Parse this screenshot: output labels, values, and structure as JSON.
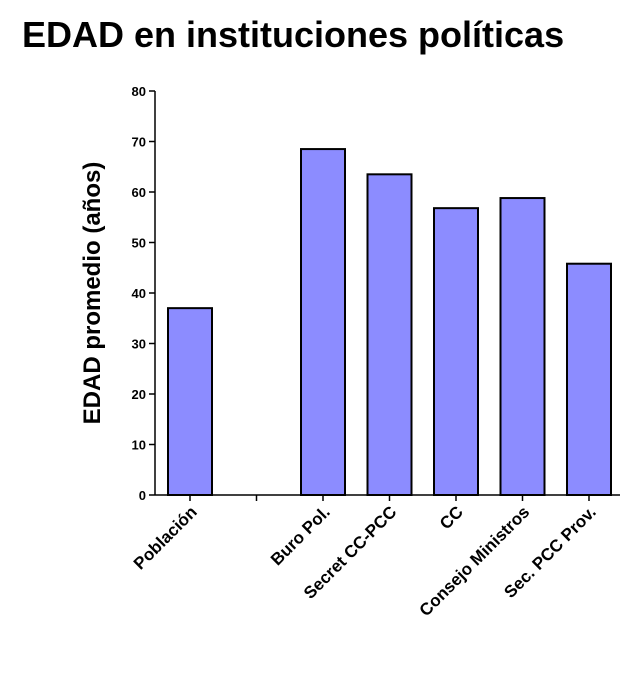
{
  "chart_data": {
    "type": "bar",
    "title": "EDAD en instituciones políticas",
    "xlabel": "",
    "ylabel": "EDAD promedio (años)",
    "ylim": [
      0,
      80
    ],
    "yticks": [
      0,
      10,
      20,
      30,
      40,
      50,
      60,
      70,
      80
    ],
    "grid": false,
    "categories": [
      "Población",
      "",
      "Buro Pol.",
      "Secret CC-PCC",
      "CC",
      "Consejo Ministros",
      "Sec. PCC Prov."
    ],
    "values": [
      37,
      null,
      68.5,
      63.5,
      56.8,
      58.8,
      45.8
    ],
    "bar_color": "#8c8cff",
    "bar_edge_color": "#000000"
  }
}
